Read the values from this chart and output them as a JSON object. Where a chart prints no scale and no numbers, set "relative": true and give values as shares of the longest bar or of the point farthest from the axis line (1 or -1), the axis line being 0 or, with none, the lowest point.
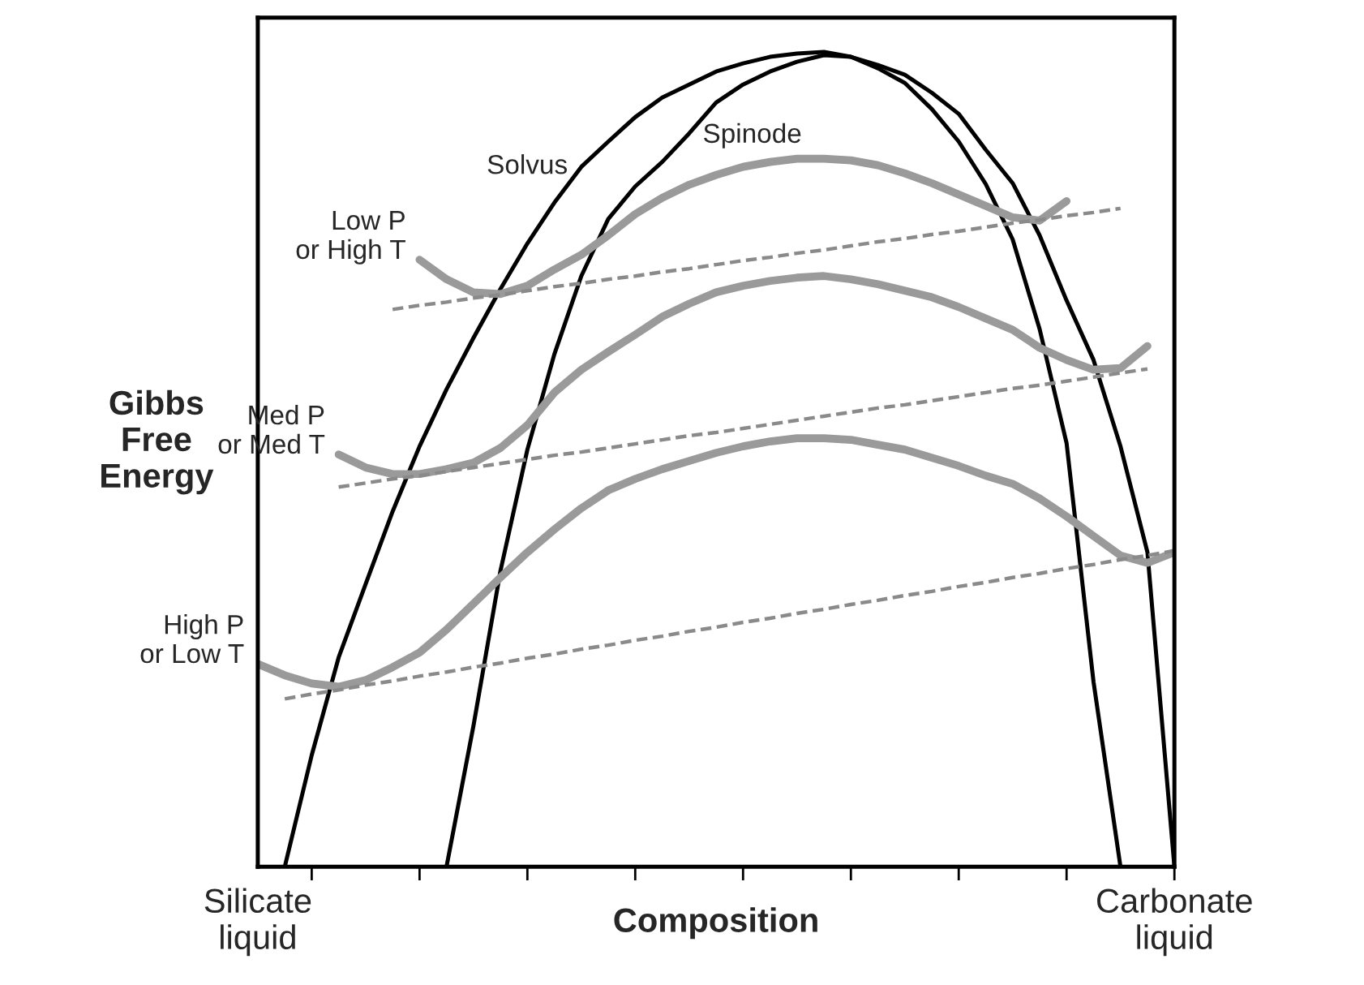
{
  "chart_data": {
    "type": "line",
    "relative": true,
    "tick_labels": false,
    "categories": [
      null,
      null,
      null,
      null,
      null,
      null,
      null,
      null,
      null,
      null,
      null,
      null,
      null,
      null,
      null,
      null,
      null,
      null,
      null,
      null,
      null,
      null,
      null,
      null,
      null,
      null,
      null,
      null,
      null,
      null,
      null,
      null,
      null,
      null,
      null
    ],
    "xlabel": "Composition",
    "ylabel": "Gibbs\nFree\nEnergy",
    "annotations": [
      "Silicate\nliquid",
      "Carbonate\nliquid"
    ],
    "series": [
      {
        "name": "Solvus",
        "color": "#000000",
        "values": [
          null,
          0,
          0.137,
          0.257,
          0.347,
          0.436,
          0.516,
          0.586,
          0.649,
          0.709,
          0.765,
          0.815,
          0.859,
          0.89,
          0.92,
          0.944,
          0.96,
          0.976,
          0.986,
          0.994,
          0.998,
          1.0,
          0.994,
          0.984,
          0.972,
          0.95,
          0.924,
          0.88,
          0.839,
          0.775,
          0.695,
          0.622,
          0.516,
          0.386,
          0
        ]
      },
      {
        "name": "Spinode",
        "color": "#000000",
        "values": [
          null,
          null,
          null,
          null,
          null,
          null,
          null,
          0,
          0.173,
          0.363,
          0.512,
          0.629,
          0.725,
          0.795,
          0.835,
          0.865,
          0.9,
          0.938,
          0.96,
          0.976,
          0.988,
          0.996,
          0.994,
          0.98,
          0.962,
          0.93,
          0.89,
          0.838,
          0.77,
          0.66,
          0.52,
          0.227,
          0,
          null,
          null
        ]
      },
      {
        "name": "Low P\nor High T",
        "color": "#9a9a9a",
        "values": [
          null,
          null,
          null,
          null,
          null,
          null,
          0.745,
          0.721,
          0.705,
          0.703,
          0.713,
          0.733,
          0.751,
          0.775,
          0.801,
          0.821,
          0.837,
          0.849,
          0.859,
          0.865,
          0.869,
          0.869,
          0.867,
          0.861,
          0.851,
          0.839,
          0.825,
          0.811,
          0.797,
          0.793,
          0.817,
          null,
          null,
          null,
          null
        ]
      },
      {
        "name": "Med P\nor Med T",
        "color": "#9a9a9a",
        "values": [
          null,
          null,
          null,
          0.506,
          0.49,
          0.482,
          0.482,
          0.488,
          0.496,
          0.514,
          0.542,
          0.582,
          0.61,
          0.632,
          0.653,
          0.675,
          0.691,
          0.705,
          0.713,
          0.719,
          0.723,
          0.725,
          0.721,
          0.715,
          0.707,
          0.699,
          0.687,
          0.673,
          0.659,
          0.637,
          0.622,
          0.61,
          0.612,
          0.639,
          null
        ]
      },
      {
        "name": "High P\nor Low T",
        "color": "#9a9a9a",
        "values": [
          0.249,
          0.235,
          0.225,
          0.221,
          0.229,
          0.245,
          0.263,
          0.291,
          0.323,
          0.355,
          0.386,
          0.414,
          0.44,
          0.462,
          0.476,
          0.488,
          0.498,
          0.508,
          0.516,
          0.522,
          0.526,
          0.526,
          0.524,
          0.518,
          0.512,
          0.502,
          0.492,
          0.48,
          0.47,
          0.452,
          0.43,
          0.406,
          0.382,
          0.373,
          0.386
        ]
      },
      {
        "color": "#8a8a8a",
        "line_style": "dashed",
        "values": [
          null,
          null,
          null,
          null,
          null,
          0.684,
          0.689,
          0.693,
          0.698,
          0.702,
          0.707,
          0.712,
          0.716,
          0.721,
          0.725,
          0.73,
          0.734,
          0.739,
          0.744,
          0.748,
          0.753,
          0.757,
          0.762,
          0.767,
          0.771,
          0.776,
          0.78,
          0.785,
          0.79,
          0.794,
          0.799,
          0.803,
          0.808,
          null,
          null
        ]
      },
      {
        "color": "#8a8a8a",
        "line_style": "dashed",
        "values": [
          null,
          null,
          null,
          0.466,
          0.471,
          0.476,
          0.48,
          0.485,
          0.49,
          0.495,
          0.5,
          0.505,
          0.509,
          0.514,
          0.519,
          0.524,
          0.529,
          0.533,
          0.538,
          0.543,
          0.548,
          0.553,
          0.558,
          0.563,
          0.567,
          0.572,
          0.577,
          0.582,
          0.587,
          0.591,
          0.596,
          0.601,
          0.606,
          0.611,
          null
        ]
      },
      {
        "color": "#8a8a8a",
        "line_style": "dashed",
        "values": [
          null,
          0.206,
          0.212,
          0.217,
          0.223,
          0.228,
          0.234,
          0.239,
          0.245,
          0.25,
          0.256,
          0.261,
          0.267,
          0.272,
          0.278,
          0.283,
          0.289,
          0.294,
          0.3,
          0.305,
          0.311,
          0.316,
          0.322,
          0.327,
          0.333,
          0.338,
          0.344,
          0.349,
          0.355,
          0.36,
          0.366,
          0.371,
          0.377,
          0.382,
          0.388
        ]
      }
    ]
  }
}
